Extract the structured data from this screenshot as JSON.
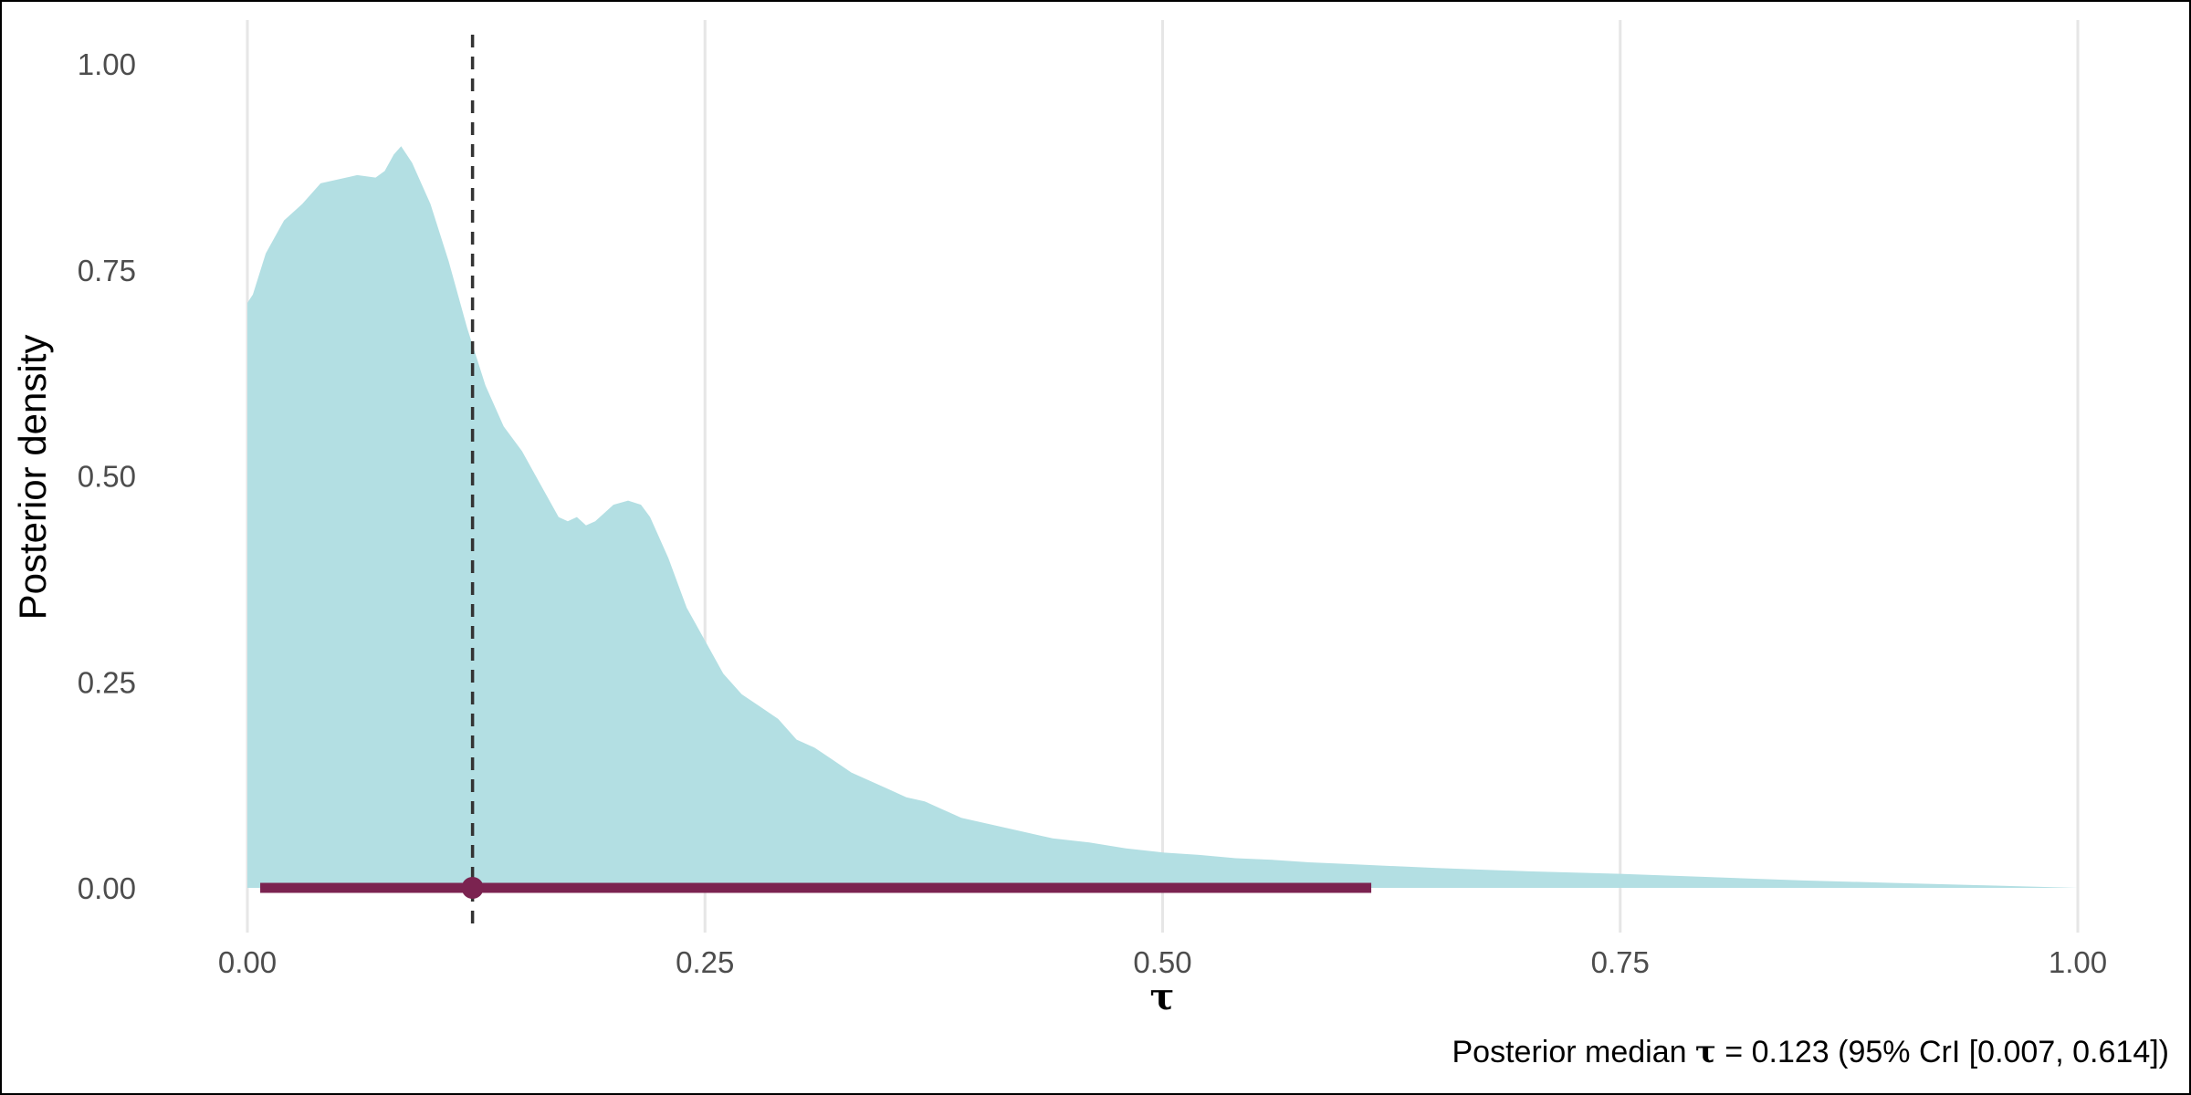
{
  "chart_data": {
    "type": "area",
    "xlabel": "τ",
    "ylabel": "Posterior density",
    "xlim": [
      0,
      1
    ],
    "ylim": [
      0,
      1
    ],
    "x_ticks": [
      0,
      0.25,
      0.5,
      0.75,
      1.0
    ],
    "y_ticks": [
      0,
      0.25,
      0.5,
      0.75,
      1.0
    ],
    "x_tick_labels": [
      "0.00",
      "0.25",
      "0.50",
      "0.75",
      "1.00"
    ],
    "y_tick_labels": [
      "0.00",
      "0.25",
      "0.50",
      "0.75",
      "1.00"
    ],
    "grid": "vertical major lines",
    "density": {
      "color": "#b3dfe3",
      "x": [
        0,
        0.003,
        0.01,
        0.02,
        0.03,
        0.04,
        0.05,
        0.06,
        0.07,
        0.075,
        0.08,
        0.084,
        0.09,
        0.1,
        0.11,
        0.12,
        0.13,
        0.14,
        0.15,
        0.16,
        0.17,
        0.175,
        0.18,
        0.185,
        0.19,
        0.2,
        0.208,
        0.215,
        0.22,
        0.23,
        0.24,
        0.25,
        0.26,
        0.27,
        0.28,
        0.29,
        0.3,
        0.31,
        0.32,
        0.33,
        0.34,
        0.35,
        0.36,
        0.37,
        0.38,
        0.39,
        0.4,
        0.42,
        0.44,
        0.46,
        0.48,
        0.5,
        0.52,
        0.54,
        0.56,
        0.58,
        0.6,
        0.62,
        0.65,
        0.7,
        0.75,
        0.8,
        0.85,
        0.9,
        0.95,
        1.0
      ],
      "y": [
        0.71,
        0.72,
        0.77,
        0.81,
        0.83,
        0.855,
        0.86,
        0.865,
        0.862,
        0.87,
        0.89,
        0.9,
        0.88,
        0.83,
        0.76,
        0.68,
        0.61,
        0.56,
        0.53,
        0.49,
        0.45,
        0.445,
        0.45,
        0.44,
        0.445,
        0.465,
        0.47,
        0.465,
        0.45,
        0.4,
        0.34,
        0.3,
        0.26,
        0.235,
        0.22,
        0.205,
        0.18,
        0.17,
        0.155,
        0.14,
        0.13,
        0.12,
        0.11,
        0.105,
        0.095,
        0.085,
        0.08,
        0.07,
        0.06,
        0.055,
        0.048,
        0.043,
        0.04,
        0.036,
        0.034,
        0.031,
        0.029,
        0.027,
        0.024,
        0.02,
        0.017,
        0.013,
        0.009,
        0.006,
        0.003,
        0.0
      ]
    },
    "median": {
      "value": 0.123,
      "line_style": "dashed",
      "color": "#333333"
    },
    "credible_interval": {
      "lower": 0.007,
      "upper": 0.614,
      "point": 0.123,
      "color": "#7b2350"
    },
    "caption": {
      "prefix": "Posterior median ",
      "symbol": "τ",
      "suffix": " = 0.123 (95% CrI [0.007, 0.614])"
    }
  }
}
